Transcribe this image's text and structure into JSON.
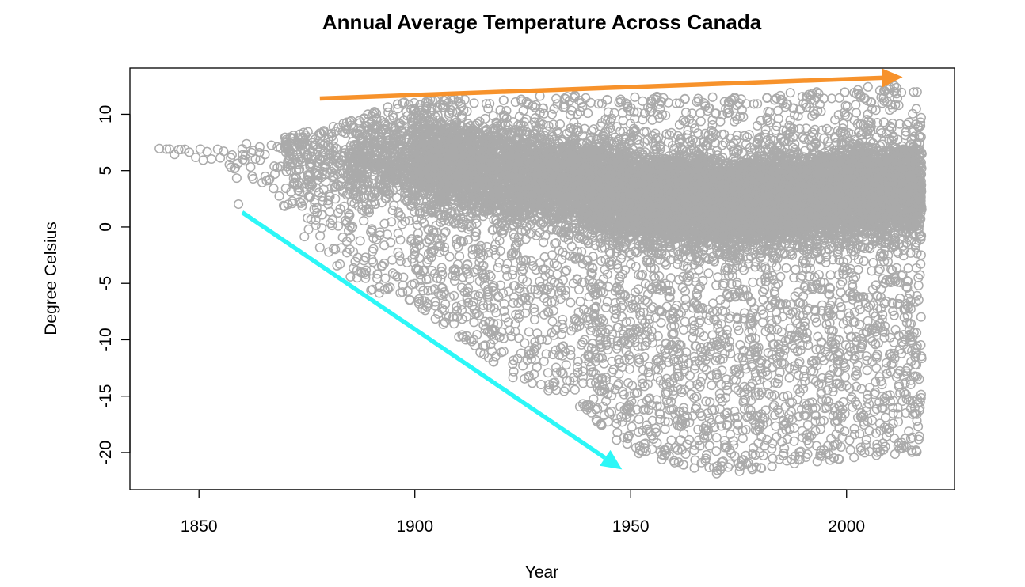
{
  "chart_data": {
    "type": "scatter",
    "title": "Annual Average Temperature Across Canada",
    "xlabel": "Year",
    "ylabel": "Degree Celsius",
    "xlim": [
      1834,
      2025
    ],
    "ylim": [
      -23.3,
      14.1
    ],
    "xticks": [
      1850,
      1900,
      1950,
      2000
    ],
    "xtick_labels": [
      "1850",
      "1900",
      "1950",
      "2000"
    ],
    "yticks": [
      -20,
      -15,
      -10,
      -5,
      0,
      5,
      10
    ],
    "ytick_labels": [
      "-20",
      "-15",
      "-10",
      "-5",
      "0",
      "5",
      "10"
    ],
    "grid": false,
    "legend": "none",
    "marker": "open-circle",
    "point_color": "#aaaaaa",
    "x_range": [
      1841,
      2017
    ],
    "envelope": [
      {
        "year": 1841,
        "min": 6.5,
        "max": 7.2
      },
      {
        "year": 1855,
        "min": 5.5,
        "max": 7.0
      },
      {
        "year": 1870,
        "min": 0.5,
        "max": 8.0
      },
      {
        "year": 1885,
        "min": -5.0,
        "max": 9.5
      },
      {
        "year": 1900,
        "min": -7.0,
        "max": 11.5
      },
      {
        "year": 1925,
        "min": -14.0,
        "max": 11.5
      },
      {
        "year": 1935,
        "min": -15.0,
        "max": 11.8
      },
      {
        "year": 1950,
        "min": -20.0,
        "max": 11.5
      },
      {
        "year": 1960,
        "min": -21.0,
        "max": 11.8
      },
      {
        "year": 1970,
        "min": -22.0,
        "max": 11.5
      },
      {
        "year": 1990,
        "min": -21.0,
        "max": 12.0
      },
      {
        "year": 2017,
        "min": -20.0,
        "max": 12.8
      }
    ],
    "annotations": [
      {
        "type": "arrow",
        "color": "#f7922b",
        "from": [
          1878,
          11.4
        ],
        "to": [
          2013,
          13.3
        ]
      },
      {
        "type": "arrow",
        "color": "#2cf7f7",
        "from": [
          1860,
          1.3
        ],
        "to": [
          1948,
          -21.5
        ]
      }
    ]
  }
}
